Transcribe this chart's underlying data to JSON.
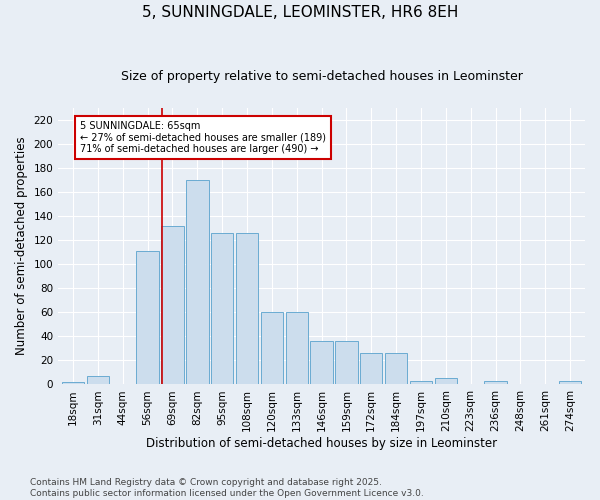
{
  "title": "5, SUNNINGDALE, LEOMINSTER, HR6 8EH",
  "subtitle": "Size of property relative to semi-detached houses in Leominster",
  "xlabel": "Distribution of semi-detached houses by size in Leominster",
  "ylabel": "Number of semi-detached properties",
  "categories": [
    "18sqm",
    "31sqm",
    "44sqm",
    "56sqm",
    "69sqm",
    "82sqm",
    "95sqm",
    "108sqm",
    "120sqm",
    "133sqm",
    "146sqm",
    "159sqm",
    "172sqm",
    "184sqm",
    "197sqm",
    "210sqm",
    "223sqm",
    "236sqm",
    "248sqm",
    "261sqm",
    "274sqm"
  ],
  "values": [
    2,
    7,
    0,
    111,
    132,
    170,
    126,
    126,
    60,
    60,
    36,
    36,
    26,
    26,
    3,
    5,
    0,
    3,
    0,
    0,
    3
  ],
  "bar_color": "#ccdded",
  "bar_edge_color": "#6aabd2",
  "annotation_text": "5 SUNNINGDALE: 65sqm\n← 27% of semi-detached houses are smaller (189)\n71% of semi-detached houses are larger (490) →",
  "annotation_box_color": "#ffffff",
  "annotation_box_edge_color": "#cc0000",
  "vline_color": "#cc0000",
  "vline_x": 4,
  "ylim": [
    0,
    230
  ],
  "yticks": [
    0,
    20,
    40,
    60,
    80,
    100,
    120,
    140,
    160,
    180,
    200,
    220
  ],
  "bg_color": "#e8eef5",
  "plot_bg_color": "#e8eef5",
  "footer": "Contains HM Land Registry data © Crown copyright and database right 2025.\nContains public sector information licensed under the Open Government Licence v3.0.",
  "title_fontsize": 11,
  "subtitle_fontsize": 9,
  "label_fontsize": 8.5,
  "tick_fontsize": 7.5,
  "footer_fontsize": 6.5
}
